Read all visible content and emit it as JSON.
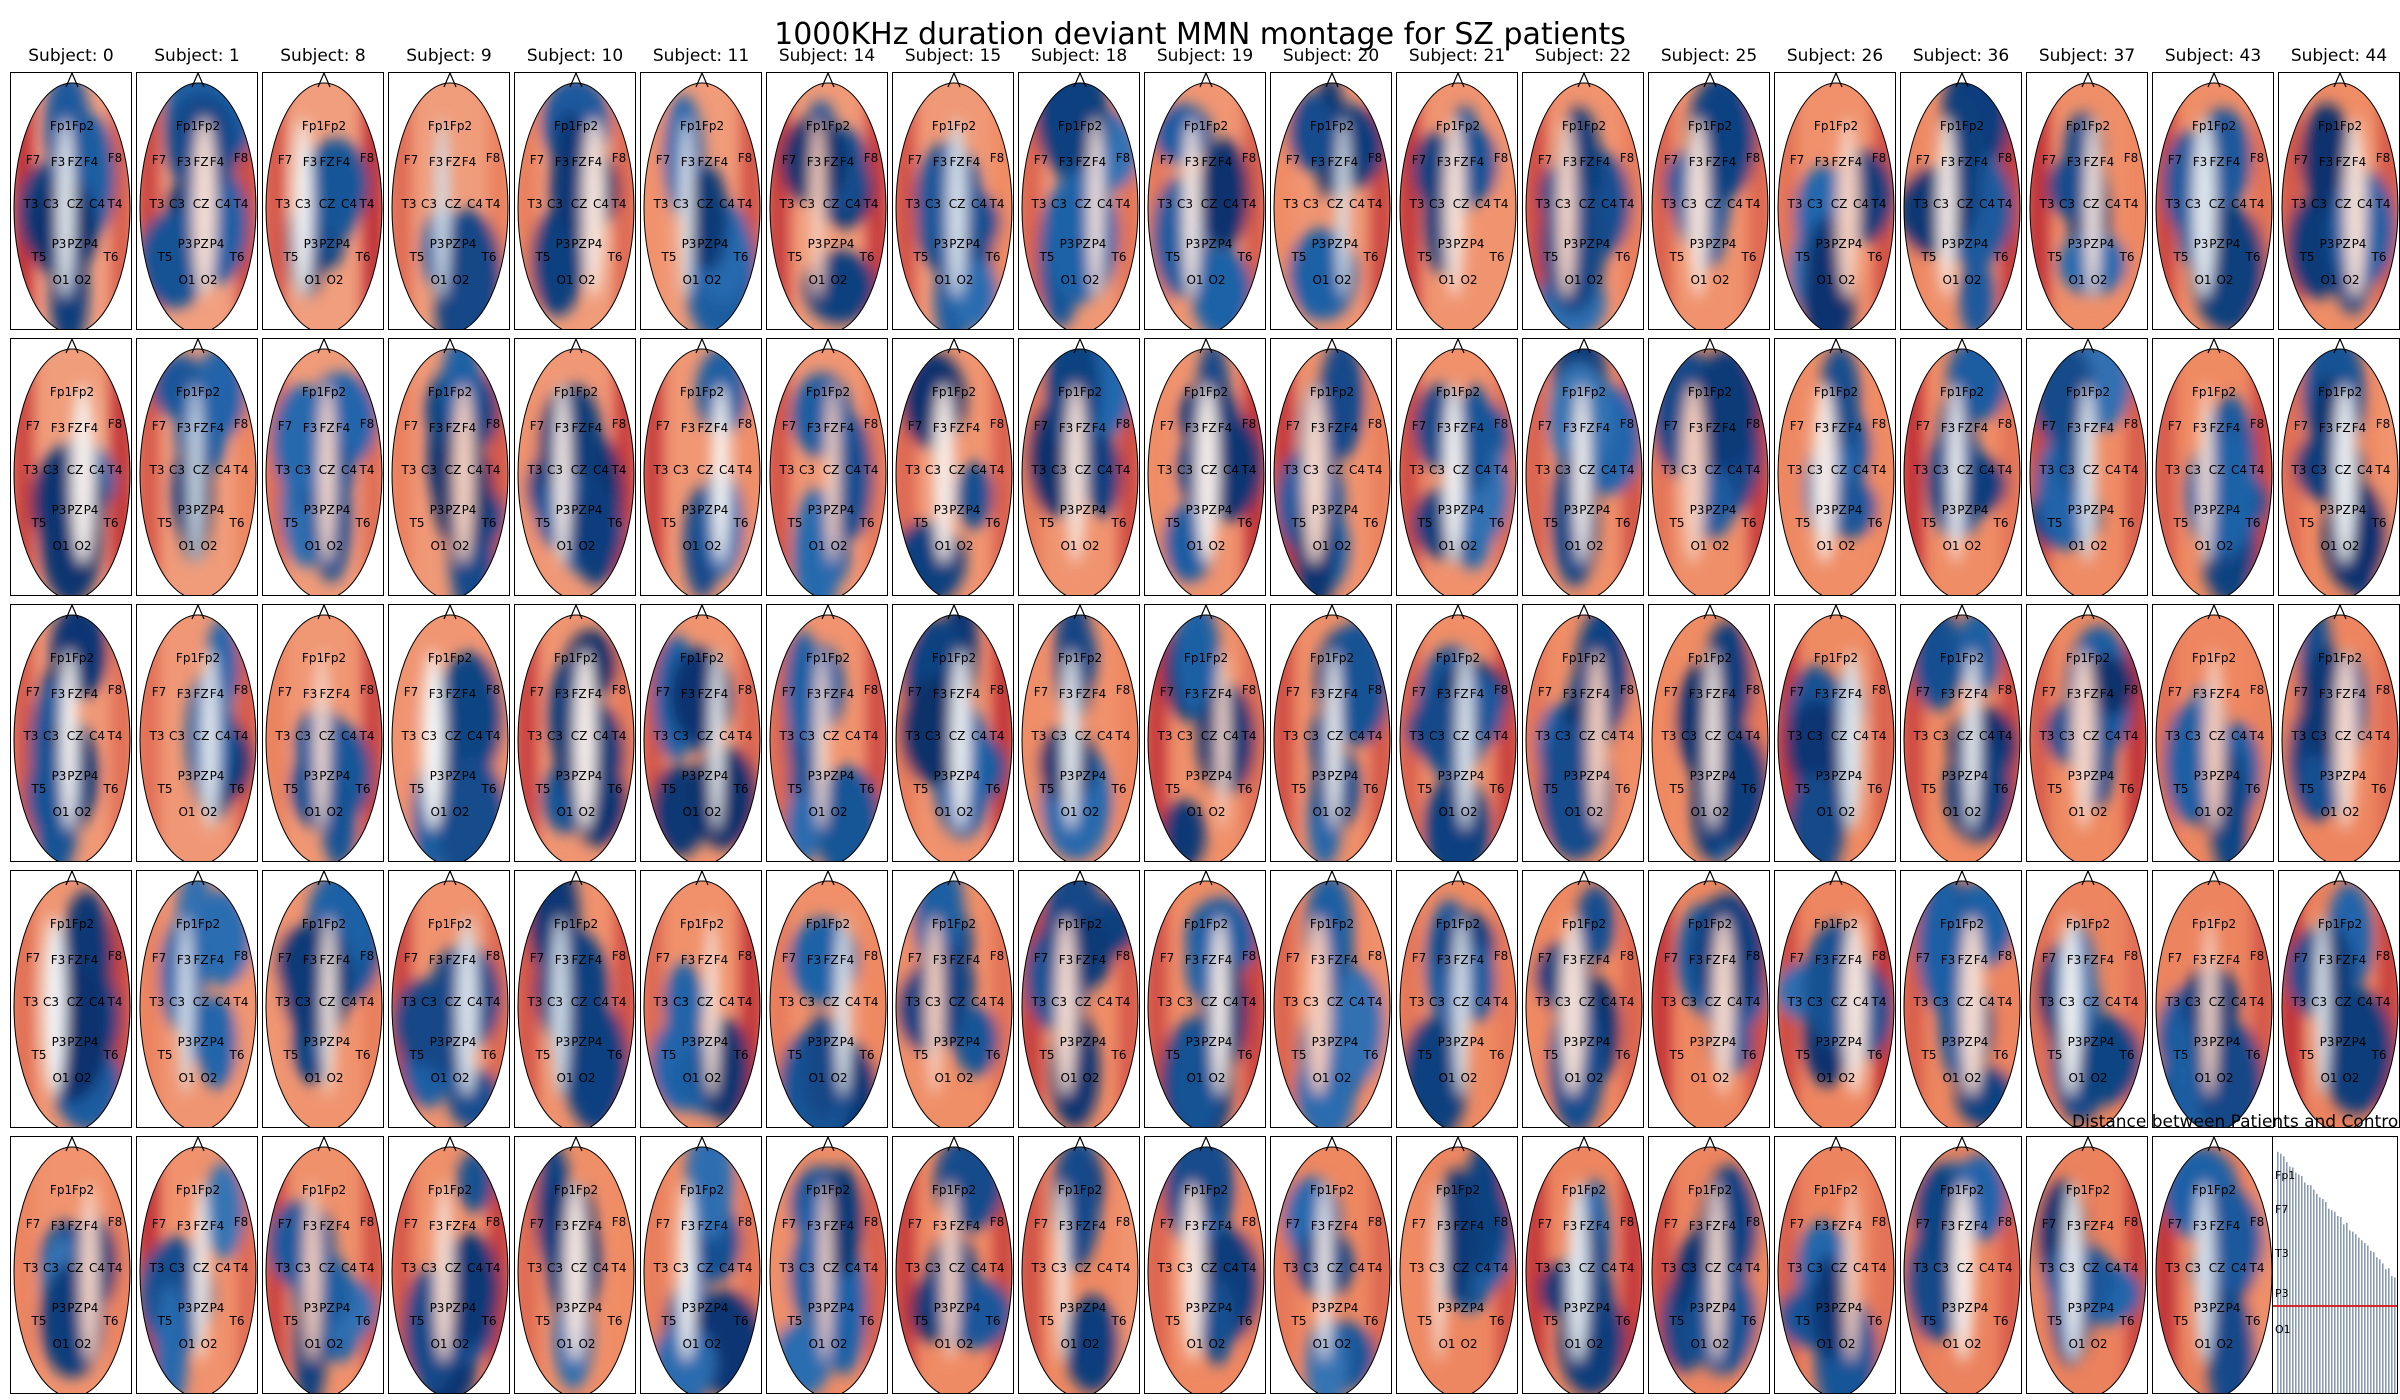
{
  "figure": {
    "title": "1000KHz duration deviant MMN montage for SZ patients"
  },
  "columns": [
    {
      "subject_label": "Subject: 0"
    },
    {
      "subject_label": "Subject: 1"
    },
    {
      "subject_label": "Subject: 8"
    },
    {
      "subject_label": "Subject: 9"
    },
    {
      "subject_label": "Subject: 10"
    },
    {
      "subject_label": "Subject: 11"
    },
    {
      "subject_label": "Subject: 14"
    },
    {
      "subject_label": "Subject: 15"
    },
    {
      "subject_label": "Subject: 18"
    },
    {
      "subject_label": "Subject: 19"
    },
    {
      "subject_label": "Subject: 20"
    },
    {
      "subject_label": "Subject: 21"
    },
    {
      "subject_label": "Subject: 22"
    },
    {
      "subject_label": "Subject: 25"
    },
    {
      "subject_label": "Subject: 26"
    },
    {
      "subject_label": "Subject: 36"
    },
    {
      "subject_label": "Subject: 37"
    },
    {
      "subject_label": "Subject: 43"
    },
    {
      "subject_label": "Subject: 44"
    }
  ],
  "electrodes": [
    "Fp1",
    "Fp2",
    "F7",
    "F3",
    "FZ",
    "F4",
    "F8",
    "T3",
    "C3",
    "CZ",
    "C4",
    "T4",
    "P3",
    "PZ",
    "P4",
    "T5",
    "T6",
    "O1",
    "O2"
  ],
  "colormap": {
    "negative": "#08306b",
    "neutral": "#f7f7f7",
    "positive": "#b2182b"
  },
  "distance_panel": {
    "title": "Distance between Patients and Controls",
    "threshold_color": "#d62728",
    "bar_color": "#8a9bb5"
  }
}
